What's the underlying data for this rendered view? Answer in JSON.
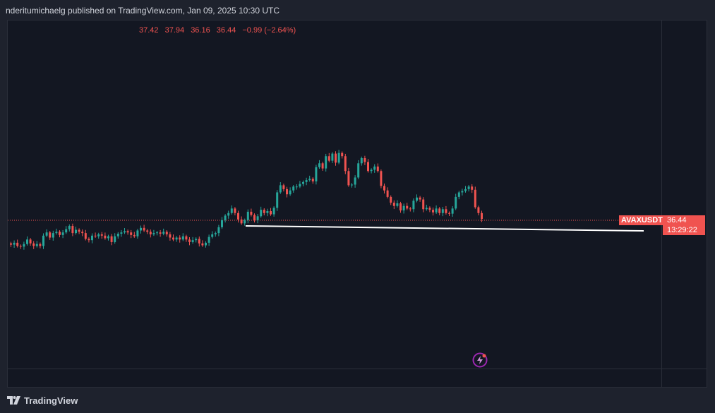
{
  "header": {
    "publisher_line": "nderitumichaelg published on TradingView.com, Jan 09, 2025 10:30 UTC"
  },
  "ohlc": {
    "open": "37.42",
    "high": "37.94",
    "low": "36.16",
    "close": "36.44",
    "change": "−0.99 (−2.64%)"
  },
  "symbol": {
    "name": "AVAXUSDT",
    "last_price": "36.44",
    "countdown": "13:29:22"
  },
  "footer": {
    "brand": "TradingView"
  },
  "colors": {
    "up": "#26a69a",
    "down": "#ef5350",
    "background": "#131722",
    "trendline": "#ffffff"
  },
  "icons": [
    "tradingview-logo-icon",
    "lightning-bolt-icon"
  ],
  "chart_data": {
    "type": "candlestick",
    "symbol": "AVAXUSDT",
    "last_price": 36.44,
    "closes": [
      34.55,
      34.7,
      34.45,
      34.4,
      34.6,
      34.95,
      34.65,
      34.45,
      34.6,
      34.45,
      35.25,
      35.5,
      35.1,
      35.45,
      35.55,
      35.3,
      35.5,
      35.75,
      36.0,
      35.45,
      35.7,
      35.55,
      35.45,
      35.0,
      34.9,
      35.25,
      35.2,
      35.35,
      35.25,
      35.05,
      35.2,
      34.75,
      35.2,
      35.4,
      35.5,
      35.6,
      35.5,
      35.3,
      35.2,
      35.65,
      35.85,
      35.65,
      35.55,
      35.35,
      35.45,
      35.5,
      35.4,
      35.55,
      35.35,
      35.1,
      34.95,
      35.1,
      34.95,
      35.2,
      34.95,
      34.75,
      34.9,
      35.0,
      34.65,
      34.5,
      34.7,
      35.15,
      35.35,
      35.45,
      35.9,
      36.45,
      36.8,
      37.0,
      37.35,
      37.0,
      36.5,
      36.2,
      36.45,
      37.1,
      36.85,
      36.45,
      36.75,
      37.25,
      37.0,
      37.15,
      36.9,
      37.4,
      38.6,
      39.15,
      38.85,
      38.45,
      38.75,
      39.05,
      39.05,
      39.25,
      39.4,
      39.55,
      39.65,
      39.45,
      40.55,
      40.85,
      40.45,
      41.4,
      41.05,
      41.6,
      40.9,
      41.65,
      41.4,
      40.25,
      39.15,
      39.2,
      39.75,
      40.85,
      41.25,
      40.95,
      40.25,
      40.35,
      40.6,
      40.25,
      39.1,
      38.75,
      38.25,
      37.8,
      37.55,
      37.75,
      37.2,
      37.55,
      37.35,
      37.3,
      37.95,
      38.2,
      38.05,
      37.3,
      37.4,
      37.25,
      37.05,
      37.35,
      37.0,
      37.3,
      37.0,
      36.95,
      37.35,
      38.25,
      38.6,
      38.7,
      38.85,
      39.05,
      38.8,
      37.45,
      37.0,
      36.55
    ]
  }
}
